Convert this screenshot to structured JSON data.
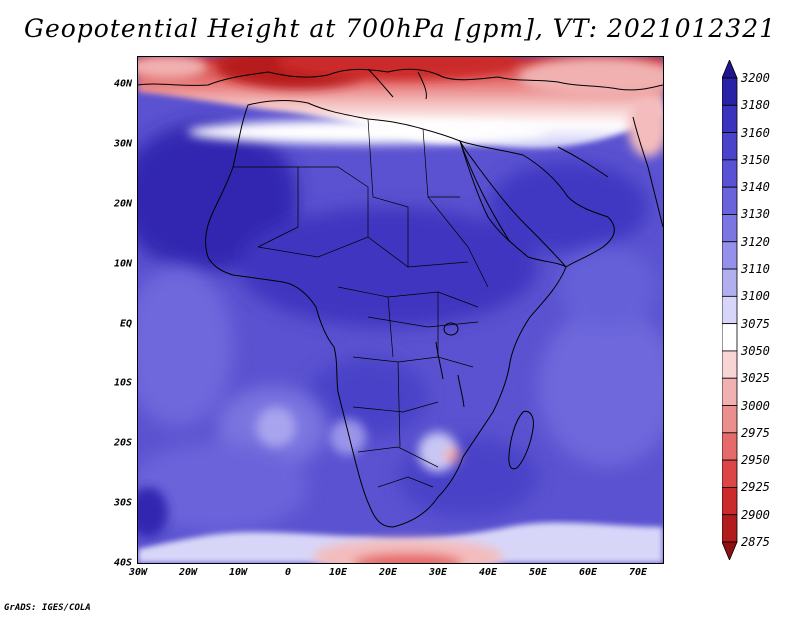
{
  "title": "Geopotential Height at 700hPa [gpm], VT: 2021012321",
  "credit": "GrADS: IGES/COLA",
  "lat_labels": [
    "40N",
    "30N",
    "20N",
    "10N",
    "EQ",
    "10S",
    "20S",
    "30S",
    "40S"
  ],
  "lon_labels": [
    "30W",
    "20W",
    "10W",
    "0",
    "10E",
    "20E",
    "30E",
    "40E",
    "50E",
    "60E",
    "70E"
  ],
  "colorbar": {
    "labels": [
      "3200",
      "3180",
      "3160",
      "3150",
      "3140",
      "3130",
      "3120",
      "3110",
      "3100",
      "3075",
      "3050",
      "3025",
      "3000",
      "2975",
      "2950",
      "2925",
      "2900",
      "2875"
    ],
    "colors": [
      "#20158f",
      "#2a22a6",
      "#3b32bd",
      "#4a42ca",
      "#5a52d4",
      "#6a63db",
      "#7c76e2",
      "#9590e9",
      "#b2afef",
      "#d8d6f8",
      "#ffffff",
      "#f8d5d5",
      "#f1b1b1",
      "#eb8e8e",
      "#e56a6a",
      "#dc4646",
      "#cc2b2b",
      "#b31c1c",
      "#8f1010"
    ]
  }
}
